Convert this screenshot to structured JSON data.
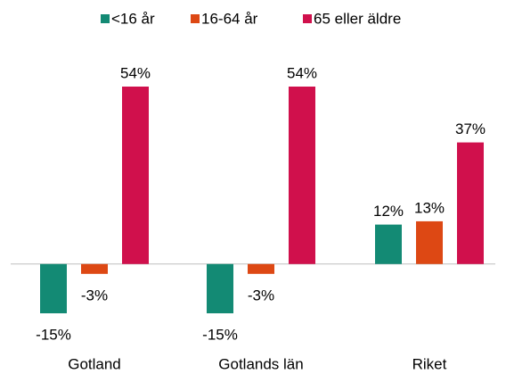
{
  "chart_data": {
    "type": "bar",
    "categories": [
      "Gotland",
      "Gotlands län",
      "Riket"
    ],
    "series": [
      {
        "name": "<16 år",
        "color": "#138a74",
        "values": [
          -15,
          -15,
          12
        ],
        "value_labels": [
          "-15%",
          "-15%",
          "12%"
        ]
      },
      {
        "name": "16-64 år",
        "color": "#dd4814",
        "values": [
          -3,
          -3,
          13
        ],
        "value_labels": [
          "-3%",
          "-3%",
          "13%"
        ]
      },
      {
        "name": "65 eller äldre",
        "color": "#d0104c",
        "values": [
          54,
          54,
          37
        ],
        "value_labels": [
          "54%",
          "54%",
          "37%"
        ]
      }
    ],
    "legend": "top"
  }
}
